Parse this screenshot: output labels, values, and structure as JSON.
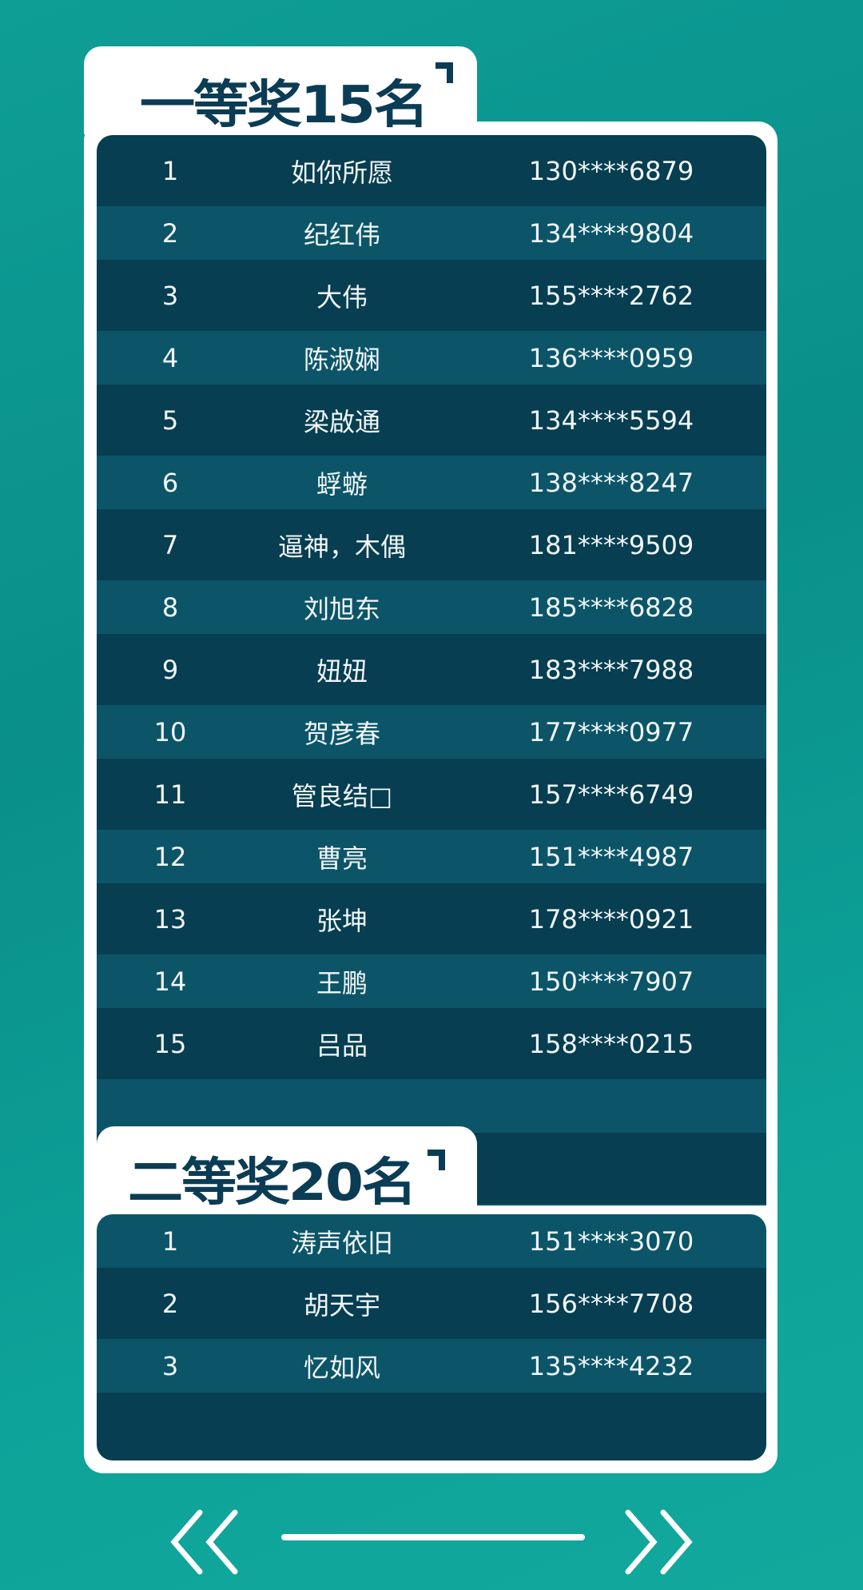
{
  "colors": {
    "background": "#0e9e96",
    "row_dark": "#073e51",
    "row_light": "#0c5569",
    "title": "#0b3c55",
    "frame": "#ffffff"
  },
  "first_prize": {
    "title": "一等奖15名",
    "rows": [
      {
        "rank": "1",
        "name": "如你所愿",
        "phone": "130****6879"
      },
      {
        "rank": "2",
        "name": "纪红伟",
        "phone": "134****9804"
      },
      {
        "rank": "3",
        "name": "大伟",
        "phone": "155****2762"
      },
      {
        "rank": "4",
        "name": "陈淑娴",
        "phone": "136****0959"
      },
      {
        "rank": "5",
        "name": "梁啟通",
        "phone": "134****5594"
      },
      {
        "rank": "6",
        "name": "蜉蝣",
        "phone": "138****8247"
      },
      {
        "rank": "7",
        "name": "逼神，木偶",
        "phone": "181****9509"
      },
      {
        "rank": "8",
        "name": "刘旭东",
        "phone": "185****6828"
      },
      {
        "rank": "9",
        "name": "妞妞",
        "phone": "183****7988"
      },
      {
        "rank": "10",
        "name": "贺彦春",
        "phone": "177****0977"
      },
      {
        "rank": "11",
        "name": "管良结□",
        "phone": "157****6749"
      },
      {
        "rank": "12",
        "name": "曹亮",
        "phone": "151****4987"
      },
      {
        "rank": "13",
        "name": "张坤",
        "phone": "178****0921"
      },
      {
        "rank": "14",
        "name": "王鹏",
        "phone": "150****7907"
      },
      {
        "rank": "15",
        "name": "吕品",
        "phone": "158****0215"
      }
    ]
  },
  "second_prize": {
    "title": "二等奖20名",
    "rows": [
      {
        "rank": "1",
        "name": "涛声依旧",
        "phone": "151****3070"
      },
      {
        "rank": "2",
        "name": "胡天宇",
        "phone": "156****7708"
      },
      {
        "rank": "3",
        "name": "忆如风",
        "phone": "135****4232"
      }
    ]
  },
  "nav": {
    "prev_icon": "double-chevron-left-icon",
    "next_icon": "double-chevron-right-icon"
  }
}
